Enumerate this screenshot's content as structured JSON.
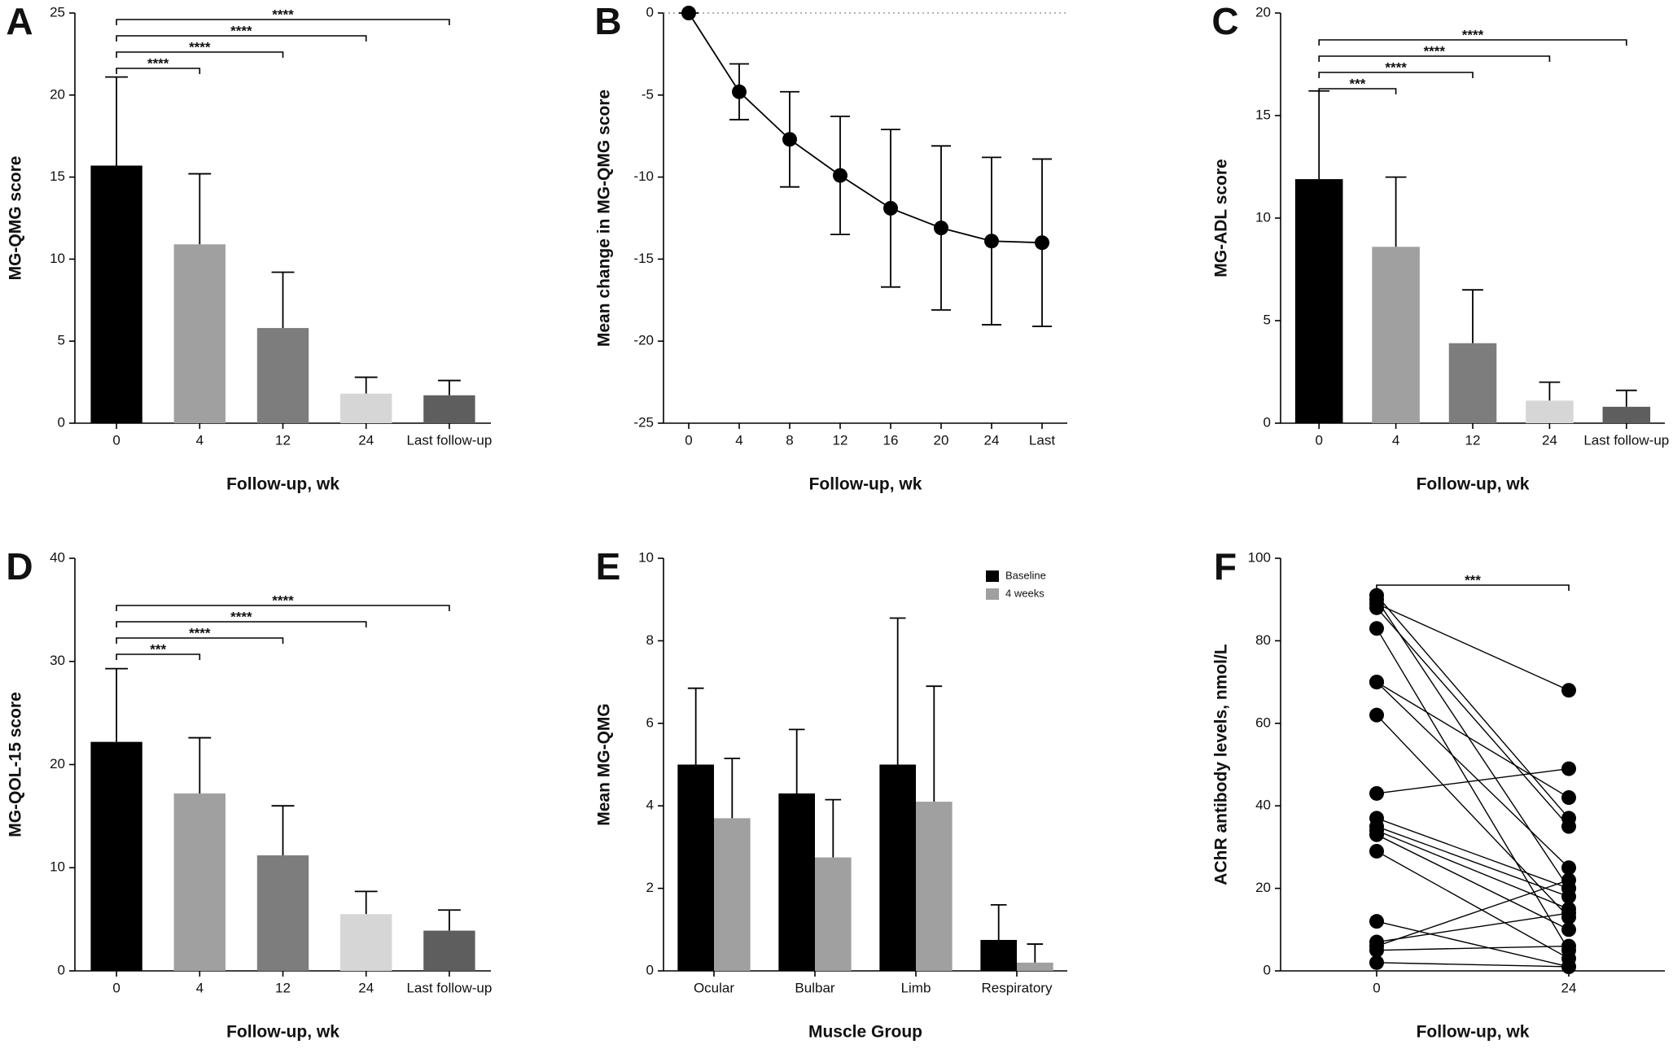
{
  "chart_data": [
    {
      "type": "bar",
      "panel": "A",
      "ylabel": "MG-QMG score",
      "xlabel": "Follow-up, wk",
      "categories": [
        "0",
        "4",
        "12",
        "24",
        "Last follow-up"
      ],
      "values": [
        15.7,
        10.9,
        5.8,
        1.8,
        1.7
      ],
      "errors": [
        5.4,
        4.3,
        3.4,
        1.0,
        0.9
      ],
      "colors": [
        "#000000",
        "#a0a0a0",
        "#7d7d7d",
        "#d6d6d6",
        "#5e5e5e"
      ],
      "ylim": [
        0,
        25
      ],
      "yticks": [
        0,
        5,
        10,
        15,
        20,
        25
      ],
      "brackets": [
        {
          "from": "0",
          "to": "4",
          "label": "****"
        },
        {
          "from": "0",
          "to": "12",
          "label": "****"
        },
        {
          "from": "0",
          "to": "24",
          "label": "****"
        },
        {
          "from": "0",
          "to": "Last follow-up",
          "label": "****"
        }
      ]
    },
    {
      "type": "line",
      "panel": "B",
      "ylabel": "Mean change in MG-QMG score",
      "xlabel": "Follow-up, wk",
      "categories": [
        "0",
        "4",
        "8",
        "12",
        "16",
        "20",
        "24",
        "Last"
      ],
      "values": [
        0,
        -4.8,
        -7.7,
        -9.9,
        -11.9,
        -13.1,
        -13.9,
        -14.0
      ],
      "errors": [
        0,
        1.7,
        2.9,
        3.6,
        4.8,
        5.0,
        5.1,
        5.1
      ],
      "color": "#000000",
      "hline": 0,
      "ylim": [
        -25,
        0
      ],
      "yticks": [
        -25,
        -20,
        -15,
        -10,
        -5,
        0
      ]
    },
    {
      "type": "bar",
      "panel": "C",
      "ylabel": "MG-ADL score",
      "xlabel": "Follow-up, wk",
      "categories": [
        "0",
        "4",
        "12",
        "24",
        "Last follow-up"
      ],
      "values": [
        11.9,
        8.6,
        3.9,
        1.1,
        0.8
      ],
      "errors": [
        4.3,
        3.4,
        2.6,
        0.9,
        0.8
      ],
      "colors": [
        "#000000",
        "#a0a0a0",
        "#7d7d7d",
        "#d6d6d6",
        "#5e5e5e"
      ],
      "ylim": [
        0,
        20
      ],
      "yticks": [
        0,
        5,
        10,
        15,
        20
      ],
      "brackets": [
        {
          "from": "0",
          "to": "4",
          "label": "***"
        },
        {
          "from": "0",
          "to": "12",
          "label": "****"
        },
        {
          "from": "0",
          "to": "24",
          "label": "****"
        },
        {
          "from": "0",
          "to": "Last follow-up",
          "label": "****"
        }
      ]
    },
    {
      "type": "bar",
      "panel": "D",
      "ylabel": "MG-QOL-15 score",
      "xlabel": "Follow-up, wk",
      "categories": [
        "0",
        "4",
        "12",
        "24",
        "Last follow-up"
      ],
      "values": [
        22.2,
        17.2,
        11.2,
        5.5,
        3.9
      ],
      "errors": [
        7.1,
        5.4,
        4.8,
        2.2,
        2.0
      ],
      "colors": [
        "#000000",
        "#a0a0a0",
        "#7d7d7d",
        "#d6d6d6",
        "#5e5e5e"
      ],
      "ylim": [
        0,
        40
      ],
      "yticks": [
        0,
        10,
        20,
        30,
        40
      ],
      "brackets": [
        {
          "from": "0",
          "to": "4",
          "label": "***"
        },
        {
          "from": "0",
          "to": "12",
          "label": "****"
        },
        {
          "from": "0",
          "to": "24",
          "label": "****"
        },
        {
          "from": "0",
          "to": "Last follow-up",
          "label": "****"
        }
      ]
    },
    {
      "type": "bar",
      "panel": "E",
      "ylabel": "Mean MG-QMG",
      "xlabel": "Muscle Group",
      "categories": [
        "Ocular",
        "Bulbar",
        "Limb",
        "Respiratory"
      ],
      "series": [
        {
          "name": "Baseline",
          "color": "#000000",
          "values": [
            5.0,
            4.3,
            5.0,
            0.75
          ],
          "errors": [
            1.85,
            1.55,
            3.55,
            0.85
          ]
        },
        {
          "name": "4 weeks",
          "color": "#a0a0a0",
          "values": [
            3.7,
            2.75,
            4.1,
            0.2
          ],
          "errors": [
            1.45,
            1.4,
            2.8,
            0.45
          ]
        }
      ],
      "legend": "upper right",
      "ylim": [
        0,
        10
      ],
      "yticks": [
        0,
        2,
        4,
        6,
        8,
        10
      ]
    },
    {
      "type": "slope",
      "panel": "F",
      "ylabel": "AChR antibody levels, nmol/L",
      "xlabel": "Follow-up, wk",
      "categories": [
        "0",
        "24"
      ],
      "color": "#000000",
      "pairs": [
        [
          91,
          37
        ],
        [
          90,
          20
        ],
        [
          89,
          68
        ],
        [
          88,
          35
        ],
        [
          83,
          5
        ],
        [
          70,
          42
        ],
        [
          70,
          25
        ],
        [
          62,
          13
        ],
        [
          43,
          49
        ],
        [
          37,
          20
        ],
        [
          35,
          18
        ],
        [
          34,
          15
        ],
        [
          33,
          10
        ],
        [
          29,
          3
        ],
        [
          12,
          1
        ],
        [
          7,
          14
        ],
        [
          6,
          22
        ],
        [
          5,
          6
        ],
        [
          2,
          1
        ]
      ],
      "ylim": [
        0,
        100
      ],
      "yticks": [
        0,
        20,
        40,
        60,
        80,
        100
      ],
      "brackets": [
        {
          "from": "0",
          "to": "24",
          "label": "***"
        }
      ]
    }
  ]
}
